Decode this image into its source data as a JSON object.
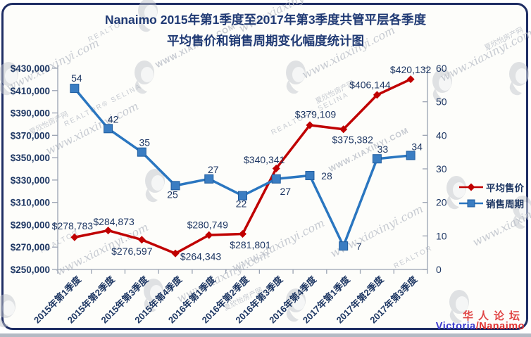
{
  "title": {
    "line1": "Nanaimo 2015年第1季度至2017年第3季度共管平层各季度",
    "line2": "平均售价和销售周期变化幅度统计图"
  },
  "legend": {
    "items": [
      {
        "label": "平均售价"
      },
      {
        "label": "销售周期"
      }
    ]
  },
  "footer": {
    "forum": "华人论坛",
    "location_blue": "Victoria",
    "location_red": "/Nanaimo"
  },
  "watermarks": {
    "script": "www.xiaxinyi.com",
    "caps": "WWW.XIAXINYI.COM",
    "cn": "夏欣怡房产网",
    "realtor": "REALTOR® SELINA",
    "realtor_short": "REALTOR"
  },
  "chart_data": {
    "type": "line",
    "title": "Nanaimo 2015年第1季度至2017年第3季度共管平层各季度平均售价和销售周期变化幅度统计图",
    "grid": false,
    "legend_position": "right",
    "categories": [
      "2015年第1季度",
      "2015年第2季度",
      "2015年第3季度",
      "2015年第4季度",
      "2016年第1季度",
      "2016年第2季度",
      "2016年第3季度",
      "2016年第4季度",
      "2017年第1季度",
      "2017年第2季度",
      "2017年第3季度"
    ],
    "series": [
      {
        "name": "平均售价",
        "axis": "left",
        "color": "#c00000",
        "marker": "diamond",
        "values": [
          278783,
          284873,
          276597,
          264343,
          280749,
          281801,
          340341,
          379109,
          375382,
          406144,
          420132
        ],
        "labels": [
          "$278,783",
          "$284,873",
          "$276,597",
          "$264,343",
          "$280,749",
          "$281,801",
          "$340,341",
          "$379,109",
          "$375,382",
          "$406,144",
          "$420,132"
        ]
      },
      {
        "name": "销售周期",
        "axis": "right",
        "color": "#2a76c0",
        "marker": "square",
        "marker_fill": "#3a7dc2",
        "marker_stroke": "#1f5c9e",
        "values": [
          54,
          42,
          35,
          25,
          27,
          22,
          27,
          28,
          7,
          33,
          34
        ],
        "labels": [
          "54",
          "42",
          "35",
          "25",
          "27",
          "22",
          "27",
          "28",
          "7",
          "33",
          "34"
        ]
      }
    ],
    "left_axis": {
      "min": 250000,
      "max": 430000,
      "step": 20000,
      "tick_labels": [
        "$250,000",
        "$270,000",
        "$290,000",
        "$310,000",
        "$330,000",
        "$350,000",
        "$370,000",
        "$390,000",
        "$410,000",
        "$430,000"
      ]
    },
    "right_axis": {
      "min": 0,
      "max": 60,
      "step": 10,
      "tick_labels": [
        "0",
        "10",
        "20",
        "30",
        "40",
        "50",
        "60"
      ]
    },
    "text_color": "#1f3864",
    "axis_color": "#9aa3b2"
  }
}
